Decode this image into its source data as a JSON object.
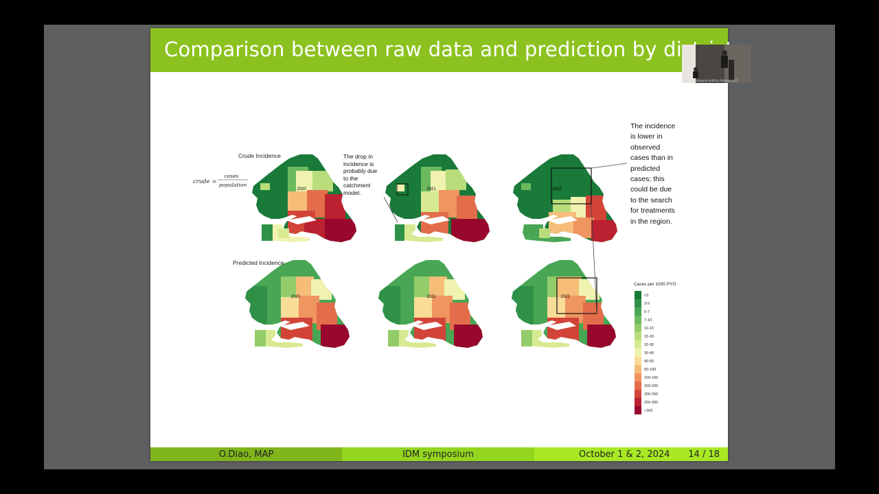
{
  "slide": {
    "title": "Comparison between raw data and prediction by district",
    "crude_label": "Crude Incidence",
    "formula_lhs": "crude =",
    "formula_num": "cases",
    "formula_den": "population",
    "predicted_label": "Predicted Incidence",
    "years": [
      "2020",
      "2021",
      "2022"
    ],
    "note_drop": [
      "The drop in",
      "incidence is",
      "probably due",
      "to the",
      "catchment",
      "model."
    ],
    "note_right": [
      "The incidence",
      "is lower in",
      "observed",
      "cases than in",
      "predicted",
      "cases; this",
      "could be due",
      "to the search",
      "for treatments",
      "in the region."
    ]
  },
  "legend": {
    "title": "Cases per 1000 PYO",
    "items": [
      {
        "label": "<3",
        "color": "#1a7a3a"
      },
      {
        "label": "3-5",
        "color": "#2f9148"
      },
      {
        "label": "5-7",
        "color": "#48a655"
      },
      {
        "label": "7-10",
        "color": "#6cba5e"
      },
      {
        "label": "10-15",
        "color": "#93cc6a"
      },
      {
        "label": "15-20",
        "color": "#b8dd7a"
      },
      {
        "label": "20-30",
        "color": "#d7ea92"
      },
      {
        "label": "30-40",
        "color": "#f0f2b0"
      },
      {
        "label": "40-50",
        "color": "#f8dc98"
      },
      {
        "label": "50-100",
        "color": "#f5bd78"
      },
      {
        "label": "100-150",
        "color": "#ef9560"
      },
      {
        "label": "150-200",
        "color": "#e36d4b"
      },
      {
        "label": "200-250",
        "color": "#d24438"
      },
      {
        "label": "250-300",
        "color": "#bb2130"
      },
      {
        "label": ">300",
        "color": "#98082c"
      }
    ]
  },
  "footer": {
    "author": "O.Diao, MAP",
    "event": "IDM symposium",
    "date": "October 1 & 2, 2024",
    "page": "14 / 18"
  },
  "webcam": {
    "caption": "Calum Redmayne (Infinity Partners LLC)"
  }
}
